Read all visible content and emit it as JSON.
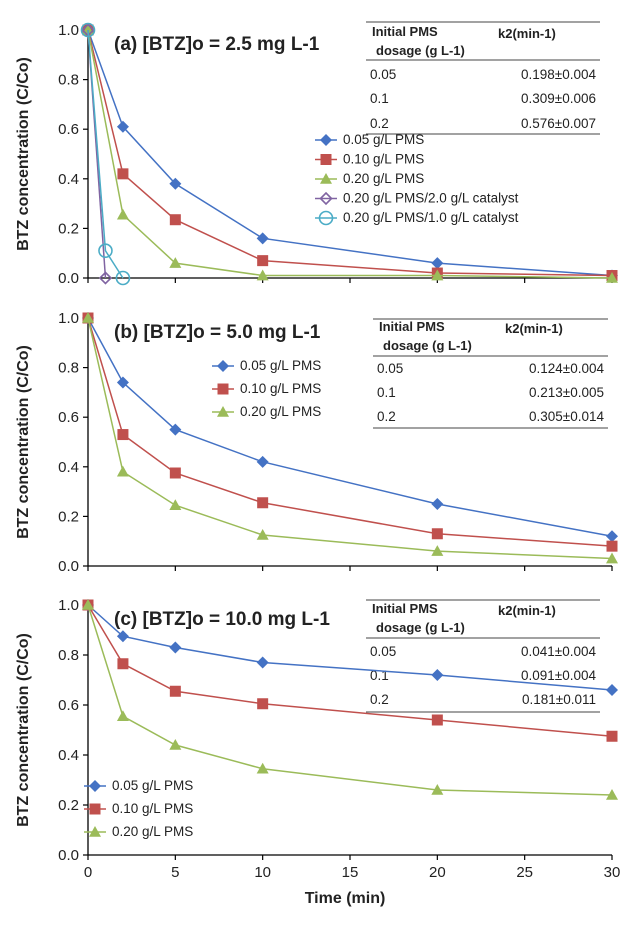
{
  "chart_data": [
    {
      "type": "line",
      "title": "(a) [BTZ]o = 2.5 mg L-1",
      "ylabel": "BTZ concentration (C/Co)",
      "xlabel": "Time (min)",
      "xlim": [
        0,
        30
      ],
      "ylim": [
        0,
        1.0
      ],
      "x_ticks": [
        "0",
        "5",
        "10",
        "15",
        "20",
        "25",
        "30"
      ],
      "y_ticks": [
        "0.0",
        "0.2",
        "0.4",
        "0.6",
        "0.8",
        "1.0"
      ],
      "legend_position": "center-right",
      "series": [
        {
          "name": "0.05 g/L PMS",
          "color": "#4472C4",
          "marker": "diamond",
          "x": [
            0,
            2,
            5,
            10,
            20,
            30
          ],
          "y": [
            1.0,
            0.61,
            0.38,
            0.16,
            0.06,
            0.01
          ]
        },
        {
          "name": "0.10 g/L PMS",
          "color": "#C0504D",
          "marker": "square",
          "x": [
            0,
            2,
            5,
            10,
            20,
            30
          ],
          "y": [
            1.0,
            0.42,
            0.235,
            0.07,
            0.02,
            0.01
          ]
        },
        {
          "name": "0.20 g/L PMS",
          "color": "#9BBB59",
          "marker": "triangle",
          "x": [
            0,
            2,
            5,
            10,
            20,
            30
          ],
          "y": [
            1.0,
            0.255,
            0.06,
            0.01,
            0.01,
            0.0
          ]
        },
        {
          "name": "0.20 g/L PMS/2.0 g/L catalyst",
          "color": "#8064A2",
          "marker": "open-diamond",
          "x": [
            0,
            1
          ],
          "y": [
            1.0,
            0.0
          ]
        },
        {
          "name": "0.20 g/L PMS/1.0 g/L catalyst",
          "color": "#4BACC6",
          "marker": "open-circle",
          "x": [
            0,
            1,
            2
          ],
          "y": [
            1.0,
            0.11,
            0.0
          ]
        }
      ],
      "table": {
        "col1_header": [
          "Initial PMS",
          "dosage (g L-1)"
        ],
        "col2_header": "k2(min-1)",
        "rows": [
          [
            "0.05",
            "0.198±0.004"
          ],
          [
            "0.1",
            "0.309±0.006"
          ],
          [
            "0.2",
            "0.576±0.007"
          ]
        ]
      }
    },
    {
      "type": "line",
      "title": "(b) [BTZ]o = 5.0 mg L-1",
      "ylabel": "BTZ concentration (C/Co)",
      "xlabel": "Time (min)",
      "xlim": [
        0,
        30
      ],
      "ylim": [
        0,
        1.0
      ],
      "x_ticks": [
        "0",
        "5",
        "10",
        "15",
        "20",
        "25",
        "30"
      ],
      "y_ticks": [
        "0.0",
        "0.2",
        "0.4",
        "0.6",
        "0.8",
        "1.0"
      ],
      "legend_position": "top-center",
      "series": [
        {
          "name": "0.05 g/L PMS",
          "color": "#4472C4",
          "marker": "diamond",
          "x": [
            0,
            2,
            5,
            10,
            20,
            30
          ],
          "y": [
            1.0,
            0.74,
            0.55,
            0.42,
            0.25,
            0.12
          ]
        },
        {
          "name": "0.10 g/L PMS",
          "color": "#C0504D",
          "marker": "square",
          "x": [
            0,
            2,
            5,
            10,
            20,
            30
          ],
          "y": [
            1.0,
            0.53,
            0.375,
            0.255,
            0.13,
            0.08
          ]
        },
        {
          "name": "0.20 g/L PMS",
          "color": "#9BBB59",
          "marker": "triangle",
          "x": [
            0,
            2,
            5,
            10,
            20,
            30
          ],
          "y": [
            1.0,
            0.38,
            0.245,
            0.125,
            0.06,
            0.03
          ]
        }
      ],
      "table": {
        "col1_header": [
          "Initial PMS",
          "dosage (g L-1)"
        ],
        "col2_header": "k2(min-1)",
        "rows": [
          [
            "0.05",
            "0.124±0.004"
          ],
          [
            "0.1",
            "0.213±0.005"
          ],
          [
            "0.2",
            "0.305±0.014"
          ]
        ]
      }
    },
    {
      "type": "line",
      "title": "(c) [BTZ]o = 10.0 mg L-1",
      "ylabel": "BTZ concentration (C/Co)",
      "xlabel": "Time (min)",
      "xlim": [
        0,
        30
      ],
      "ylim": [
        0,
        1.0
      ],
      "x_ticks": [
        "0",
        "5",
        "10",
        "15",
        "20",
        "25",
        "30"
      ],
      "y_ticks": [
        "0.0",
        "0.2",
        "0.4",
        "0.6",
        "0.8",
        "1.0"
      ],
      "legend_position": "bottom-left",
      "series": [
        {
          "name": "0.05 g/L PMS",
          "color": "#4472C4",
          "marker": "diamond",
          "x": [
            0,
            2,
            5,
            10,
            20,
            30
          ],
          "y": [
            1.0,
            0.875,
            0.83,
            0.77,
            0.72,
            0.66
          ]
        },
        {
          "name": "0.10 g/L PMS",
          "color": "#C0504D",
          "marker": "square",
          "x": [
            0,
            2,
            5,
            10,
            20,
            30
          ],
          "y": [
            1.0,
            0.765,
            0.655,
            0.605,
            0.54,
            0.475
          ]
        },
        {
          "name": "0.20 g/L PMS",
          "color": "#9BBB59",
          "marker": "triangle",
          "x": [
            0,
            2,
            5,
            10,
            20,
            30
          ],
          "y": [
            1.0,
            0.555,
            0.44,
            0.345,
            0.26,
            0.24
          ]
        }
      ],
      "table": {
        "col1_header": [
          "Initial PMS",
          "dosage (g L-1)"
        ],
        "col2_header": "k2(min-1)",
        "rows": [
          [
            "0.05",
            "0.041±0.004"
          ],
          [
            "0.1",
            "0.091±0.004"
          ],
          [
            "0.2",
            "0.181±0.011"
          ]
        ]
      }
    }
  ]
}
